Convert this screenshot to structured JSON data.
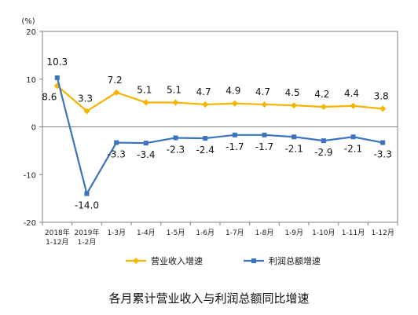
{
  "chart_data": {
    "type": "line",
    "title": "",
    "caption": "各月累计营业收入与利润总额同比增速",
    "unit_label": "(%)",
    "categories": [
      [
        "2018年",
        "1-12月"
      ],
      [
        "2019年",
        "1-2月"
      ],
      [
        "1-3月"
      ],
      [
        "1-4月"
      ],
      [
        "1-5月"
      ],
      [
        "1-6月"
      ],
      [
        "1-7月"
      ],
      [
        "1-8月"
      ],
      [
        "1-9月"
      ],
      [
        "1-10月"
      ],
      [
        "1-11月"
      ],
      [
        "1-12月"
      ]
    ],
    "ylim": [
      -20,
      20
    ],
    "yticks": [
      20,
      10,
      0,
      -10,
      -20
    ],
    "grid": false,
    "legend_position": "bottom",
    "series": [
      {
        "name": "营业收入增速",
        "color": "#f5b400",
        "marker": "diamond",
        "values": [
          8.6,
          3.3,
          7.2,
          5.1,
          5.1,
          4.7,
          4.9,
          4.7,
          4.5,
          4.2,
          4.4,
          3.8
        ],
        "labels": [
          "8.6",
          "3.3",
          "7.2",
          "5.1",
          "5.1",
          "4.7",
          "4.9",
          "4.7",
          "4.5",
          "4.2",
          "4.4",
          "3.8"
        ]
      },
      {
        "name": "利润总额增速",
        "color": "#3b73c0",
        "marker": "square",
        "values": [
          10.3,
          -14.0,
          -3.3,
          -3.4,
          -2.3,
          -2.4,
          -1.7,
          -1.7,
          -2.1,
          -2.9,
          -2.1,
          -3.3
        ],
        "labels": [
          "10.3",
          "-14.0",
          "-3.3",
          "-3.4",
          "-2.3",
          "-2.4",
          "-1.7",
          "-1.7",
          "-2.1",
          "-2.9",
          "-2.1",
          "-3.3"
        ]
      }
    ]
  }
}
